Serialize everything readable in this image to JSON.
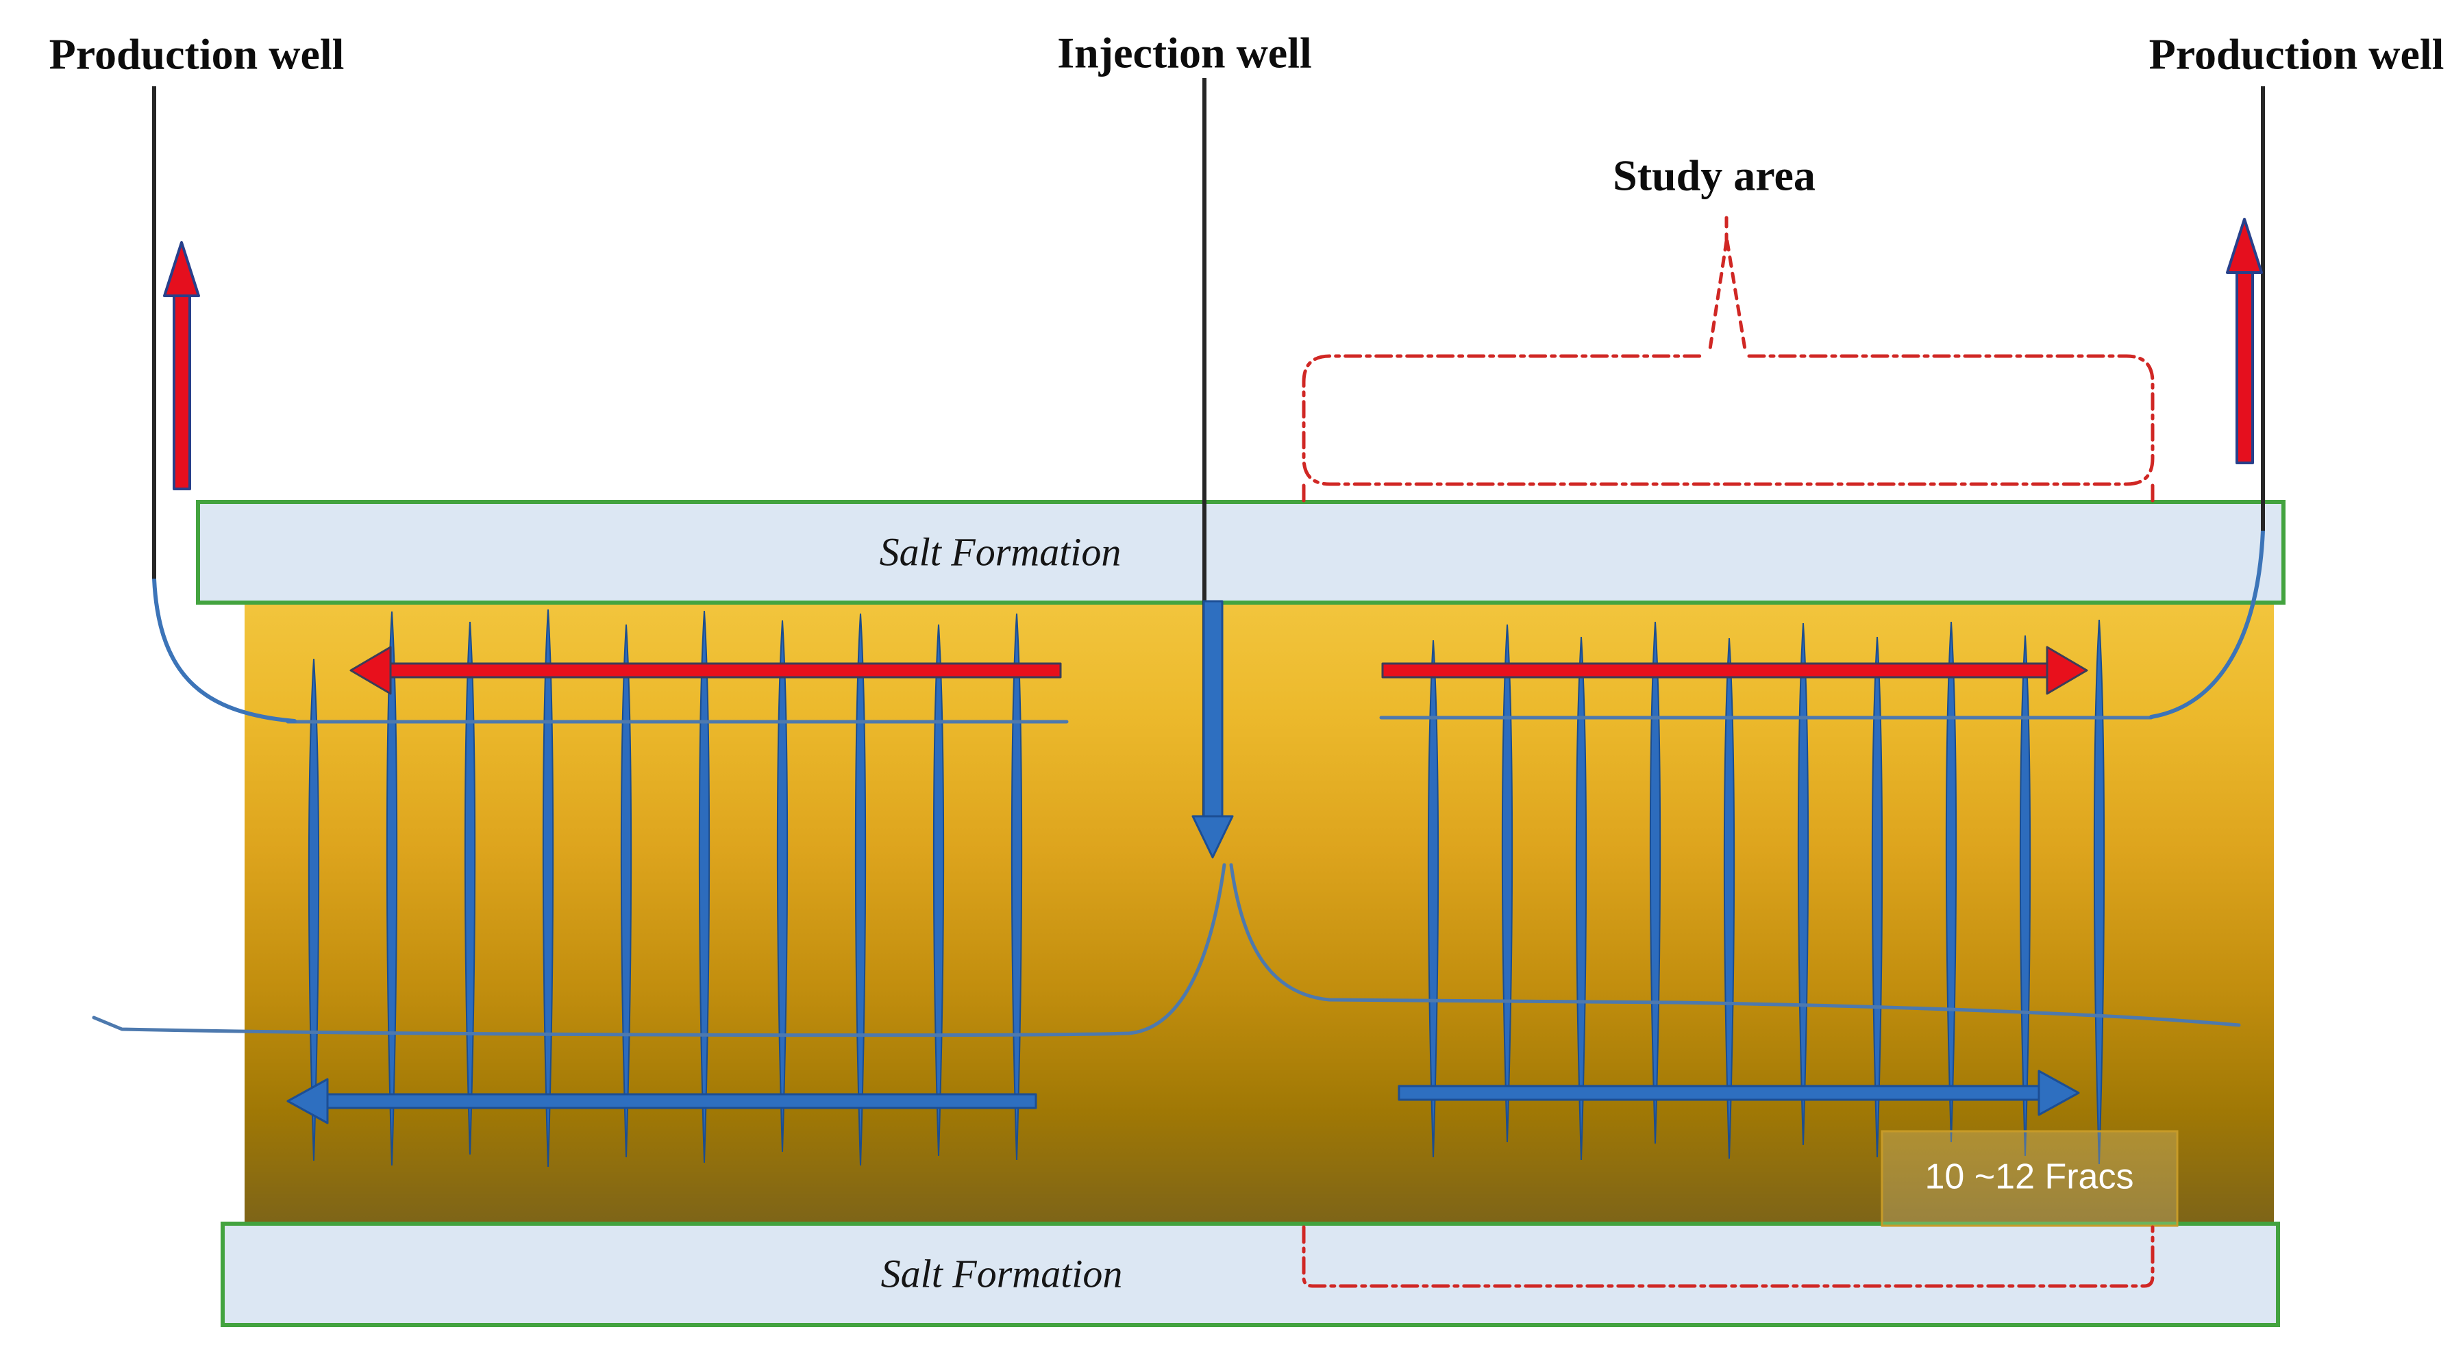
{
  "labels": {
    "production_well_left": "Production well",
    "injection_well": "Injection well",
    "production_well_right": "Production well",
    "study_area": "Study area",
    "salt_formation_top": "Salt Formation",
    "salt_formation_bottom": "Salt Formation",
    "fracs_label": "10 ~12 Fracs"
  },
  "colors": {
    "gold-top": "#f2c53d",
    "gold-mid1": "#ecb92c",
    "gold-mid2": "#dda41d",
    "gold-mid3": "#c28e0e",
    "gold-deep": "#a07805",
    "gold-bottom": "#7d6418",
    "salt-fill": "#dce7f3",
    "salt-border": "#43a33f",
    "frac-blue": "#2d6cbd",
    "frac-edge": "#1b4d8f",
    "arrow-red": "#e8101c",
    "arrow-red-outline": "#3c3c58",
    "upflow-red": "#e50f1e",
    "upflow-outline": "#27408b",
    "flow-blue": "#2e6fc0",
    "flow-blue-edge": "#1c4e94",
    "thin-line": "#4d79ae",
    "curve-blue": "#3c74b8",
    "dash-red": "#d02724",
    "well-black": "#262626",
    "fracs-box-border": "#c79b28"
  },
  "fractures": {
    "left_count": 10,
    "right_count": 10,
    "left_x": [
      458,
      572,
      686,
      800,
      914,
      1028,
      1142,
      1256,
      1370,
      1484
    ],
    "left_top": [
      962,
      893,
      908,
      890,
      912,
      892,
      906,
      896,
      912,
      896
    ],
    "left_bot": [
      1695,
      1702,
      1686,
      1704,
      1690,
      1698,
      1682,
      1702,
      1688,
      1694
    ],
    "right_x": [
      2092,
      2200,
      2308,
      2416,
      2524,
      2632,
      2740,
      2848,
      2956,
      3064
    ],
    "right_top": [
      935,
      912,
      930,
      908,
      932,
      910,
      930,
      908,
      928,
      905
    ],
    "right_bot": [
      1690,
      1668,
      1694,
      1670,
      1692,
      1672,
      1690,
      1668,
      1688,
      1700
    ]
  }
}
